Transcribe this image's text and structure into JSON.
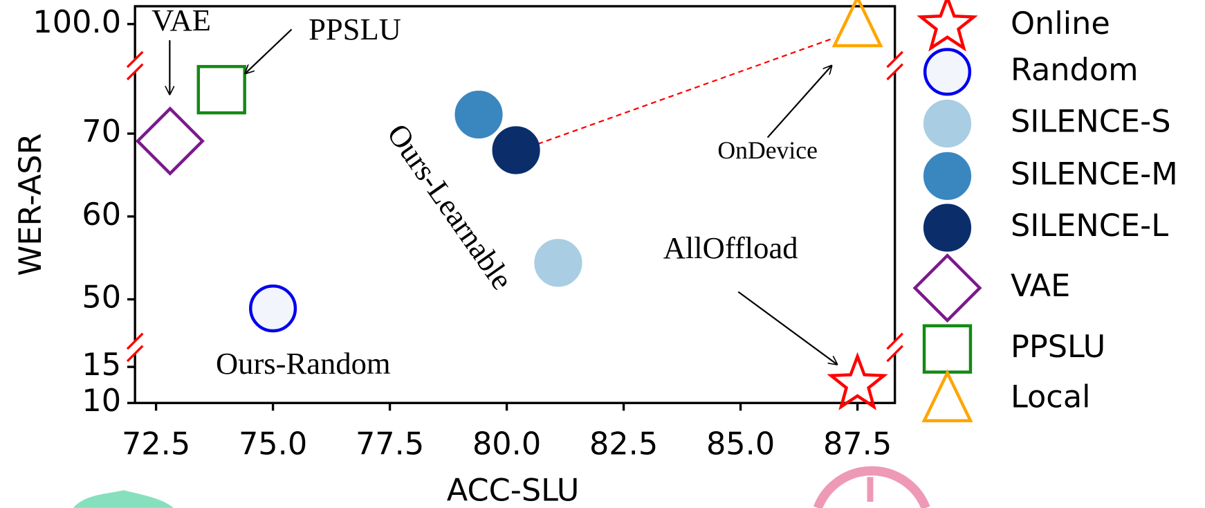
{
  "chart_data": {
    "type": "scatter",
    "xlabel": "ACC-SLU",
    "ylabel": "WER-ASR",
    "xlim": [
      72.05,
      88.3
    ],
    "xticks": [
      72.5,
      {
        "value": 75,
        "label": "75.0"
      },
      77.5,
      {
        "value": 80,
        "label": "80.0"
      },
      82.5,
      {
        "value": 85,
        "label": "85.0"
      },
      87.5
    ],
    "ylim_segments": [
      [
        10,
        17.7
      ],
      [
        44.2,
        78.2
      ],
      [
        93,
        103
      ]
    ],
    "yticks": [
      10,
      15,
      50,
      60,
      70,
      {
        "value": 100,
        "label": "100.0"
      }
    ],
    "series": [
      {
        "name": "Online",
        "marker": "star",
        "color": "#ff0000",
        "fill": "none",
        "x": [
          87.5
        ],
        "values": [
          12.6
        ]
      },
      {
        "name": "Random",
        "marker": "circle",
        "color": "#0000ee",
        "fill": "#f2f6fc",
        "x": [
          75.0
        ],
        "values": [
          48.9
        ]
      },
      {
        "name": "SILENCE-S",
        "marker": "circle",
        "color": "#a9cde3",
        "fill": "#a9cde3",
        "x": [
          81.1
        ],
        "values": [
          54.4
        ]
      },
      {
        "name": "SILENCE-M",
        "marker": "circle",
        "color": "#3a87c0",
        "fill": "#3a87c0",
        "x": [
          79.4
        ],
        "values": [
          72.3
        ]
      },
      {
        "name": "SILENCE-L",
        "marker": "circle",
        "color": "#0b2e6b",
        "fill": "#0b2e6b",
        "x": [
          80.2
        ],
        "values": [
          68.0
        ]
      },
      {
        "name": "VAE",
        "marker": "diamond",
        "color": "#7a1a8a",
        "fill": "none",
        "x": [
          72.8
        ],
        "values": [
          69.1
        ]
      },
      {
        "name": "PPSLU",
        "marker": "square",
        "color": "#138a13",
        "fill": "none",
        "x": [
          73.9
        ],
        "values": [
          75.3
        ]
      },
      {
        "name": "Local",
        "marker": "triangle",
        "color": "#ffa500",
        "fill": "none",
        "x": [
          87.5
        ],
        "values": [
          100
        ]
      }
    ],
    "annotations": [
      "VAE",
      "PPSLU",
      "Ours-Learnable",
      "OnDevice",
      "Ours-Random",
      "AllOffload"
    ]
  }
}
